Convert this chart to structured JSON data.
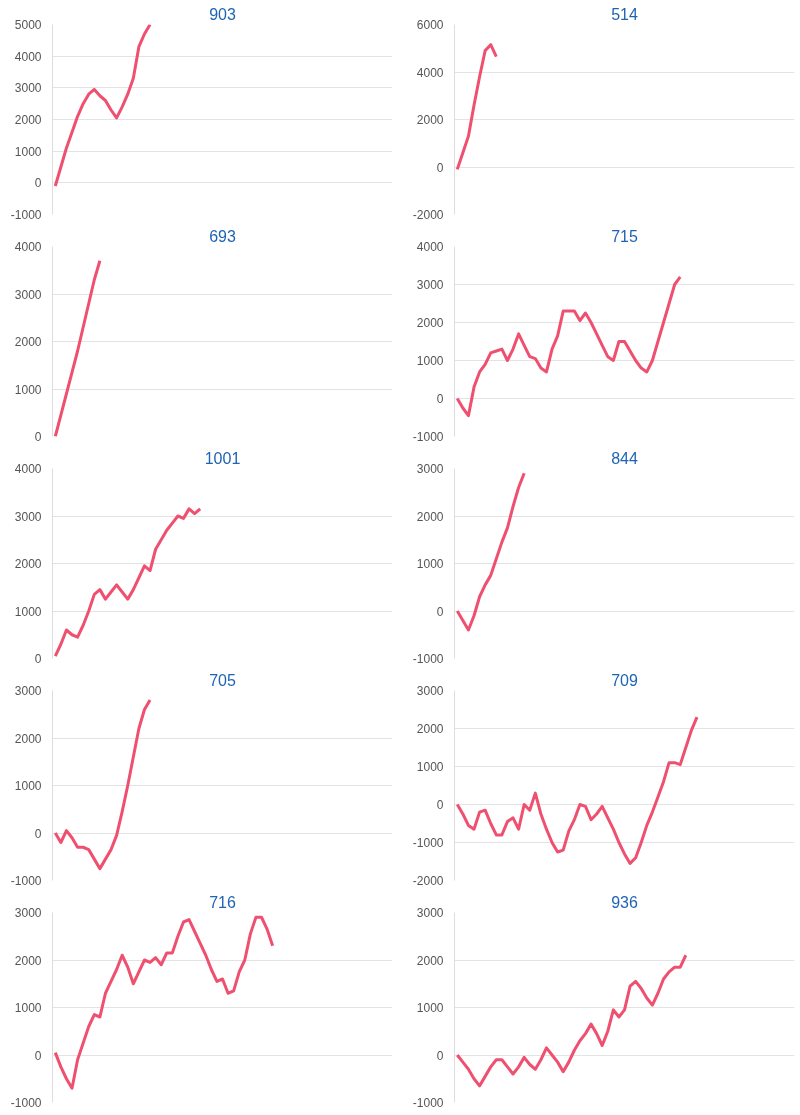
{
  "chart_data": [
    {
      "type": "line",
      "title": "903",
      "color": "#ef5070",
      "grid": "y",
      "tick_labels": "y",
      "ylim": [
        -1000,
        5000
      ],
      "yticks": [
        -1000,
        0,
        1000,
        2000,
        3000,
        4000,
        5000
      ],
      "categories": [
        null,
        null,
        null,
        null,
        null,
        null,
        null,
        null,
        null,
        null,
        null,
        null,
        null,
        null,
        null,
        null,
        null,
        null,
        null,
        null,
        null,
        null,
        null,
        null,
        null,
        null,
        null,
        null,
        null,
        null,
        null,
        null,
        null,
        null,
        null,
        null,
        null,
        null,
        null,
        null,
        null,
        null,
        null,
        null,
        null,
        null,
        null,
        null,
        null,
        null,
        null,
        null,
        null,
        null,
        null,
        null,
        null,
        null,
        null,
        null,
        null
      ],
      "values": [
        -100,
        500,
        1100,
        1600,
        2100,
        2500,
        2800,
        2950,
        2750,
        2600,
        2300,
        2050,
        2400,
        2800,
        3300,
        4300,
        4700,
        5000,
        null,
        null,
        null,
        null,
        null,
        null,
        null,
        null,
        null,
        null,
        null,
        null,
        null,
        null,
        null,
        null,
        null,
        null,
        null,
        null,
        null,
        null,
        null,
        null,
        null,
        null,
        null,
        null,
        null,
        null,
        null,
        null,
        null,
        null,
        null,
        null,
        null,
        null,
        null,
        null,
        null,
        null,
        null
      ]
    },
    {
      "type": "line",
      "title": "514",
      "color": "#ef5070",
      "grid": "y",
      "tick_labels": "y",
      "ylim": [
        -2000,
        6000
      ],
      "yticks": [
        -2000,
        0,
        2000,
        4000,
        6000
      ],
      "categories": [
        null,
        null,
        null,
        null,
        null,
        null,
        null,
        null,
        null,
        null,
        null,
        null,
        null,
        null,
        null,
        null,
        null,
        null,
        null,
        null,
        null,
        null,
        null,
        null,
        null,
        null,
        null,
        null,
        null,
        null,
        null,
        null,
        null,
        null,
        null,
        null,
        null,
        null,
        null,
        null,
        null,
        null,
        null,
        null,
        null,
        null,
        null,
        null,
        null,
        null,
        null,
        null,
        null,
        null,
        null,
        null,
        null,
        null,
        null,
        null,
        null
      ],
      "values": [
        -100,
        600,
        1300,
        2600,
        3800,
        4900,
        5150,
        4650,
        null,
        null,
        null,
        null,
        null,
        null,
        null,
        null,
        null,
        null,
        null,
        null,
        null,
        null,
        null,
        null,
        null,
        null,
        null,
        null,
        null,
        null,
        null,
        null,
        null,
        null,
        null,
        null,
        null,
        null,
        null,
        null,
        null,
        null,
        null,
        null,
        null,
        null,
        null,
        null,
        null,
        null,
        null,
        null,
        null,
        null,
        null,
        null,
        null,
        null,
        null,
        null,
        null
      ]
    },
    {
      "type": "line",
      "title": "693",
      "color": "#ef5070",
      "grid": "y",
      "tick_labels": "y",
      "ylim": [
        0,
        4000
      ],
      "yticks": [
        0,
        1000,
        2000,
        3000,
        4000
      ],
      "categories": [
        null,
        null,
        null,
        null,
        null,
        null,
        null,
        null,
        null,
        null,
        null,
        null,
        null,
        null,
        null,
        null,
        null,
        null,
        null,
        null,
        null,
        null,
        null,
        null,
        null,
        null,
        null,
        null,
        null,
        null,
        null,
        null,
        null,
        null,
        null,
        null,
        null,
        null,
        null,
        null,
        null,
        null,
        null,
        null,
        null,
        null,
        null,
        null,
        null,
        null,
        null,
        null,
        null,
        null,
        null,
        null,
        null,
        null,
        null,
        null,
        null
      ],
      "values": [
        0,
        450,
        900,
        1350,
        1800,
        2300,
        2800,
        3300,
        3700,
        null,
        null,
        null,
        null,
        null,
        null,
        null,
        null,
        null,
        null,
        null,
        null,
        null,
        null,
        null,
        null,
        null,
        null,
        null,
        null,
        null,
        null,
        null,
        null,
        null,
        null,
        null,
        null,
        null,
        null,
        null,
        null,
        null,
        null,
        null,
        null,
        null,
        null,
        null,
        null,
        null,
        null,
        null,
        null,
        null,
        null,
        null,
        null,
        null,
        null,
        null,
        null
      ]
    },
    {
      "type": "line",
      "title": "715",
      "color": "#ef5070",
      "grid": "y",
      "tick_labels": "y",
      "ylim": [
        -1000,
        4000
      ],
      "yticks": [
        -1000,
        0,
        1000,
        2000,
        3000,
        4000
      ],
      "categories": [
        null,
        null,
        null,
        null,
        null,
        null,
        null,
        null,
        null,
        null,
        null,
        null,
        null,
        null,
        null,
        null,
        null,
        null,
        null,
        null,
        null,
        null,
        null,
        null,
        null,
        null,
        null,
        null,
        null,
        null,
        null,
        null,
        null,
        null,
        null,
        null,
        null,
        null,
        null,
        null,
        null,
        null,
        null,
        null,
        null,
        null,
        null,
        null,
        null,
        null,
        null,
        null,
        null,
        null,
        null,
        null,
        null,
        null,
        null,
        null,
        null
      ],
      "values": [
        0,
        -250,
        -450,
        300,
        700,
        900,
        1200,
        1250,
        1300,
        1000,
        1300,
        1700,
        1400,
        1100,
        1050,
        800,
        700,
        1300,
        1650,
        2300,
        2300,
        2300,
        2050,
        2250,
        2000,
        1700,
        1400,
        1100,
        1000,
        1500,
        1500,
        1250,
        1000,
        800,
        700,
        1000,
        1500,
        2000,
        2500,
        3000,
        3200,
        null,
        null,
        null,
        null,
        null,
        null,
        null,
        null,
        null,
        null,
        null,
        null,
        null,
        null,
        null,
        null,
        null,
        null,
        null,
        null
      ]
    },
    {
      "type": "line",
      "title": "1001",
      "color": "#ef5070",
      "grid": "y",
      "tick_labels": "y",
      "ylim": [
        0,
        4000
      ],
      "yticks": [
        0,
        1000,
        2000,
        3000,
        4000
      ],
      "categories": [
        null,
        null,
        null,
        null,
        null,
        null,
        null,
        null,
        null,
        null,
        null,
        null,
        null,
        null,
        null,
        null,
        null,
        null,
        null,
        null,
        null,
        null,
        null,
        null,
        null,
        null,
        null,
        null,
        null,
        null,
        null,
        null,
        null,
        null,
        null,
        null,
        null,
        null,
        null,
        null,
        null,
        null,
        null,
        null,
        null,
        null,
        null,
        null,
        null,
        null,
        null,
        null,
        null,
        null,
        null,
        null,
        null,
        null,
        null,
        null,
        null
      ],
      "values": [
        50,
        300,
        600,
        500,
        450,
        700,
        1000,
        1350,
        1450,
        1250,
        1400,
        1550,
        1400,
        1250,
        1450,
        1700,
        1950,
        1850,
        2300,
        2500,
        2700,
        2850,
        3000,
        2950,
        3150,
        3050,
        3150,
        null,
        null,
        null,
        null,
        null,
        null,
        null,
        null,
        null,
        null,
        null,
        null,
        null,
        null,
        null,
        null,
        null,
        null,
        null,
        null,
        null,
        null,
        null,
        null,
        null,
        null,
        null,
        null,
        null,
        null,
        null,
        null,
        null,
        null
      ]
    },
    {
      "type": "line",
      "title": "844",
      "color": "#ef5070",
      "grid": "y",
      "tick_labels": "y",
      "ylim": [
        -1000,
        3000
      ],
      "yticks": [
        -1000,
        0,
        1000,
        2000,
        3000
      ],
      "categories": [
        null,
        null,
        null,
        null,
        null,
        null,
        null,
        null,
        null,
        null,
        null,
        null,
        null,
        null,
        null,
        null,
        null,
        null,
        null,
        null,
        null,
        null,
        null,
        null,
        null,
        null,
        null,
        null,
        null,
        null,
        null,
        null,
        null,
        null,
        null,
        null,
        null,
        null,
        null,
        null,
        null,
        null,
        null,
        null,
        null,
        null,
        null,
        null,
        null,
        null,
        null,
        null,
        null,
        null,
        null,
        null,
        null,
        null,
        null,
        null,
        null
      ],
      "values": [
        0,
        -200,
        -400,
        -100,
        300,
        550,
        750,
        1100,
        1450,
        1750,
        2200,
        2600,
        2900,
        null,
        null,
        null,
        null,
        null,
        null,
        null,
        null,
        null,
        null,
        null,
        null,
        null,
        null,
        null,
        null,
        null,
        null,
        null,
        null,
        null,
        null,
        null,
        null,
        null,
        null,
        null,
        null,
        null,
        null,
        null,
        null,
        null,
        null,
        null,
        null,
        null,
        null,
        null,
        null,
        null,
        null,
        null,
        null,
        null,
        null,
        null,
        null
      ]
    },
    {
      "type": "line",
      "title": "705",
      "color": "#ef5070",
      "grid": "y",
      "tick_labels": "y",
      "ylim": [
        -1000,
        3000
      ],
      "yticks": [
        -1000,
        0,
        1000,
        2000,
        3000
      ],
      "categories": [
        null,
        null,
        null,
        null,
        null,
        null,
        null,
        null,
        null,
        null,
        null,
        null,
        null,
        null,
        null,
        null,
        null,
        null,
        null,
        null,
        null,
        null,
        null,
        null,
        null,
        null,
        null,
        null,
        null,
        null,
        null,
        null,
        null,
        null,
        null,
        null,
        null,
        null,
        null,
        null,
        null,
        null,
        null,
        null,
        null,
        null,
        null,
        null,
        null,
        null,
        null,
        null,
        null,
        null,
        null,
        null,
        null,
        null,
        null,
        null,
        null
      ],
      "values": [
        0,
        -200,
        50,
        -100,
        -300,
        -300,
        -350,
        -550,
        -750,
        -550,
        -350,
        -50,
        450,
        1000,
        1600,
        2200,
        2600,
        2800,
        null,
        null,
        null,
        null,
        null,
        null,
        null,
        null,
        null,
        null,
        null,
        null,
        null,
        null,
        null,
        null,
        null,
        null,
        null,
        null,
        null,
        null,
        null,
        null,
        null,
        null,
        null,
        null,
        null,
        null,
        null,
        null,
        null,
        null,
        null,
        null,
        null,
        null,
        null,
        null,
        null,
        null,
        null
      ]
    },
    {
      "type": "line",
      "title": "709",
      "color": "#ef5070",
      "grid": "y",
      "tick_labels": "y",
      "ylim": [
        -2000,
        3000
      ],
      "yticks": [
        -2000,
        -1000,
        0,
        1000,
        2000,
        3000
      ],
      "categories": [
        null,
        null,
        null,
        null,
        null,
        null,
        null,
        null,
        null,
        null,
        null,
        null,
        null,
        null,
        null,
        null,
        null,
        null,
        null,
        null,
        null,
        null,
        null,
        null,
        null,
        null,
        null,
        null,
        null,
        null,
        null,
        null,
        null,
        null,
        null,
        null,
        null,
        null,
        null,
        null,
        null,
        null,
        null,
        null,
        null,
        null,
        null,
        null,
        null,
        null,
        null,
        null,
        null,
        null,
        null,
        null,
        null,
        null,
        null,
        null,
        null
      ],
      "values": [
        0,
        -250,
        -550,
        -650,
        -200,
        -150,
        -500,
        -800,
        -800,
        -450,
        -350,
        -650,
        0,
        -150,
        300,
        -250,
        -650,
        -1000,
        -1250,
        -1200,
        -700,
        -400,
        0,
        -50,
        -400,
        -250,
        -50,
        -350,
        -650,
        -1000,
        -1300,
        -1550,
        -1400,
        -1000,
        -550,
        -200,
        200,
        600,
        1100,
        1100,
        1050,
        1500,
        1950,
        2300,
        null,
        null,
        null,
        null,
        null,
        null,
        null,
        null,
        null,
        null,
        null,
        null,
        null,
        null,
        null,
        null,
        null
      ]
    },
    {
      "type": "line",
      "title": "716",
      "color": "#ef5070",
      "grid": "y",
      "tick_labels": "y",
      "ylim": [
        -1000,
        3000
      ],
      "yticks": [
        -1000,
        0,
        1000,
        2000,
        3000
      ],
      "categories": [
        null,
        null,
        null,
        null,
        null,
        null,
        null,
        null,
        null,
        null,
        null,
        null,
        null,
        null,
        null,
        null,
        null,
        null,
        null,
        null,
        null,
        null,
        null,
        null,
        null,
        null,
        null,
        null,
        null,
        null,
        null,
        null,
        null,
        null,
        null,
        null,
        null,
        null,
        null,
        null,
        null,
        null,
        null,
        null,
        null,
        null,
        null,
        null,
        null,
        null,
        null,
        null,
        null,
        null,
        null,
        null,
        null,
        null,
        null,
        null,
        null
      ],
      "values": [
        50,
        -250,
        -500,
        -700,
        -100,
        250,
        600,
        850,
        800,
        1300,
        1550,
        1800,
        2100,
        1850,
        1500,
        1750,
        2000,
        1950,
        2050,
        1900,
        2150,
        2150,
        2500,
        2800,
        2850,
        2600,
        2350,
        2100,
        1800,
        1550,
        1600,
        1300,
        1350,
        1750,
        2000,
        2550,
        2900,
        2900,
        2650,
        2300,
        null,
        null,
        null,
        null,
        null,
        null,
        null,
        null,
        null,
        null,
        null,
        null,
        null,
        null,
        null,
        null,
        null,
        null,
        null,
        null,
        null
      ]
    },
    {
      "type": "line",
      "title": "936",
      "color": "#ef5070",
      "grid": "y",
      "tick_labels": "y",
      "ylim": [
        -1000,
        3000
      ],
      "yticks": [
        -1000,
        0,
        1000,
        2000,
        3000
      ],
      "categories": [
        null,
        null,
        null,
        null,
        null,
        null,
        null,
        null,
        null,
        null,
        null,
        null,
        null,
        null,
        null,
        null,
        null,
        null,
        null,
        null,
        null,
        null,
        null,
        null,
        null,
        null,
        null,
        null,
        null,
        null,
        null,
        null,
        null,
        null,
        null,
        null,
        null,
        null,
        null,
        null,
        null,
        null,
        null,
        null,
        null,
        null,
        null,
        null,
        null,
        null,
        null,
        null,
        null,
        null,
        null,
        null,
        null,
        null,
        null,
        null,
        null
      ],
      "values": [
        0,
        -150,
        -300,
        -500,
        -650,
        -450,
        -250,
        -100,
        -100,
        -250,
        -400,
        -250,
        -50,
        -200,
        -300,
        -100,
        150,
        0,
        -150,
        -350,
        -150,
        100,
        300,
        450,
        650,
        450,
        200,
        500,
        950,
        800,
        950,
        1450,
        1550,
        1400,
        1200,
        1050,
        1300,
        1600,
        1750,
        1850,
        1850,
        2100,
        null,
        null,
        null,
        null,
        null,
        null,
        null,
        null,
        null,
        null,
        null,
        null,
        null,
        null,
        null,
        null,
        null,
        null,
        null
      ]
    }
  ]
}
